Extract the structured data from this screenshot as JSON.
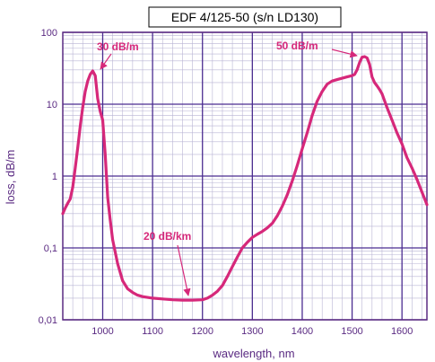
{
  "chart_data": {
    "type": "line",
    "title": "EDF 4/125-50 (s/n LD130)",
    "xlabel": "wavelength, nm",
    "ylabel": "loss, dB/m",
    "xlim": [
      920,
      1650
    ],
    "ylim": [
      0.01,
      100
    ],
    "yscale": "log",
    "grid": true,
    "x_ticks": [
      1000,
      1100,
      1200,
      1300,
      1400,
      1500,
      1600
    ],
    "y_ticks": [
      {
        "value": 0.01,
        "label": "0,01"
      },
      {
        "value": 0.1,
        "label": "0,1"
      },
      {
        "value": 1,
        "label": "1"
      },
      {
        "value": 10,
        "label": "10"
      },
      {
        "value": 100,
        "label": "100"
      }
    ],
    "series": [
      {
        "x": [
          920,
          925,
          930,
          935,
          940,
          945,
          950,
          955,
          960,
          965,
          970,
          975,
          980,
          985,
          990,
          995,
          1000,
          1005,
          1010,
          1015,
          1020,
          1030,
          1040,
          1050,
          1060,
          1070,
          1080,
          1090,
          1100,
          1120,
          1140,
          1160,
          1180,
          1200,
          1210,
          1220,
          1230,
          1240,
          1250,
          1260,
          1270,
          1280,
          1290,
          1300,
          1310,
          1320,
          1330,
          1340,
          1350,
          1360,
          1370,
          1380,
          1390,
          1400,
          1410,
          1420,
          1430,
          1440,
          1450,
          1460,
          1470,
          1480,
          1490,
          1500,
          1505,
          1510,
          1515,
          1520,
          1525,
          1530,
          1535,
          1540,
          1545,
          1550,
          1555,
          1560,
          1570,
          1580,
          1590,
          1600,
          1610,
          1620,
          1630,
          1640,
          1650
        ],
        "y": [
          0.3,
          0.36,
          0.42,
          0.48,
          0.7,
          1.3,
          2.5,
          5,
          9,
          15,
          21,
          26,
          29,
          25,
          12,
          8,
          6,
          2,
          0.5,
          0.25,
          0.13,
          0.06,
          0.035,
          0.027,
          0.024,
          0.022,
          0.021,
          0.0205,
          0.02,
          0.0195,
          0.019,
          0.0188,
          0.0188,
          0.019,
          0.02,
          0.022,
          0.025,
          0.03,
          0.04,
          0.055,
          0.075,
          0.1,
          0.12,
          0.14,
          0.155,
          0.17,
          0.19,
          0.22,
          0.28,
          0.38,
          0.55,
          0.85,
          1.4,
          2.4,
          4,
          7,
          11,
          15,
          19,
          21,
          22,
          23,
          24,
          25,
          26,
          30,
          38,
          45,
          46,
          44,
          36,
          24,
          20,
          18,
          16,
          14,
          9,
          6,
          4,
          2.8,
          1.8,
          1.3,
          0.9,
          0.6,
          0.4
        ],
        "color": "#d6287a"
      }
    ],
    "annotations": [
      {
        "text": "30 dB/m",
        "x": 980,
        "y": 29
      },
      {
        "text": "50 dB/m",
        "x": 1530,
        "y": 46
      },
      {
        "text": "20 dB/km",
        "x": 1170,
        "y": 0.019
      }
    ],
    "colors": {
      "curve": "#d6287a",
      "grid": "#4b2c90",
      "frame": "#5a2a82"
    }
  }
}
